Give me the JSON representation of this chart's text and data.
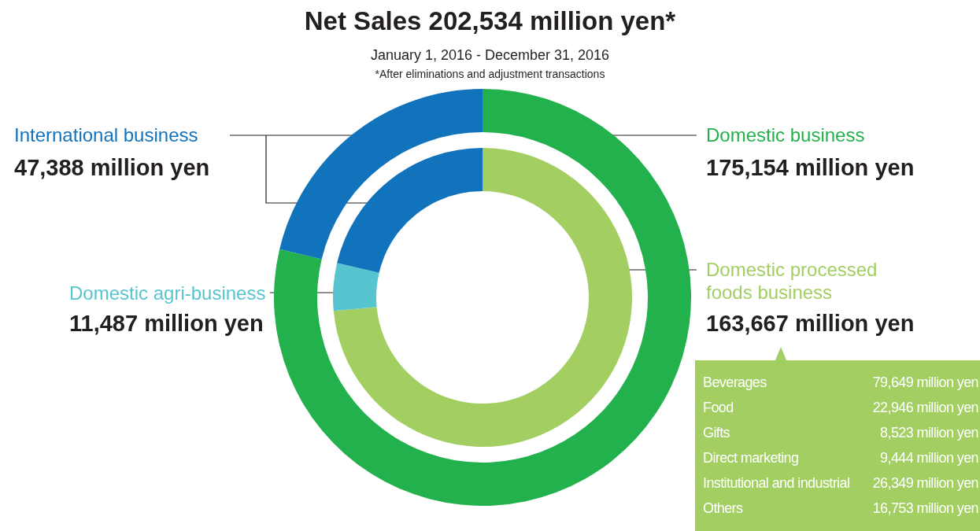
{
  "chart_data": [
    {
      "type": "donut",
      "title": "Net Sales 202,534 million yen*",
      "subtitle": "January 1, 2016 - December 31, 2016",
      "annotations": [
        "*After eliminations and adjustment transactions"
      ],
      "legend": false,
      "categories": [
        "Domestic business",
        "International business"
      ],
      "values": [
        175154,
        47388
      ],
      "colors": [
        "#22b14c",
        "#1173bc"
      ],
      "value_labels": [
        "175,154 million yen",
        "47,388 million yen"
      ]
    },
    {
      "type": "donut",
      "legend": false,
      "categories": [
        "Domestic processed foods business",
        "Domestic agri-business",
        null
      ],
      "values": [
        163667,
        11487,
        47388
      ],
      "colors": [
        "#a3cf62",
        "#56c5d0",
        "#1173bc"
      ],
      "value_labels": [
        "163,667 million yen",
        "11,487 million yen",
        null
      ]
    },
    {
      "type": "other",
      "categories": [
        "Beverages",
        "Food",
        "Gifts",
        "Direct marketing",
        "Institutional and industrial",
        "Others"
      ],
      "value_labels": [
        "79,649 million yen",
        "22,946 million yen",
        "8,523 million yen",
        "9,444 million yen",
        "26,349 million yen",
        "16,753 million yen"
      ]
    }
  ]
}
